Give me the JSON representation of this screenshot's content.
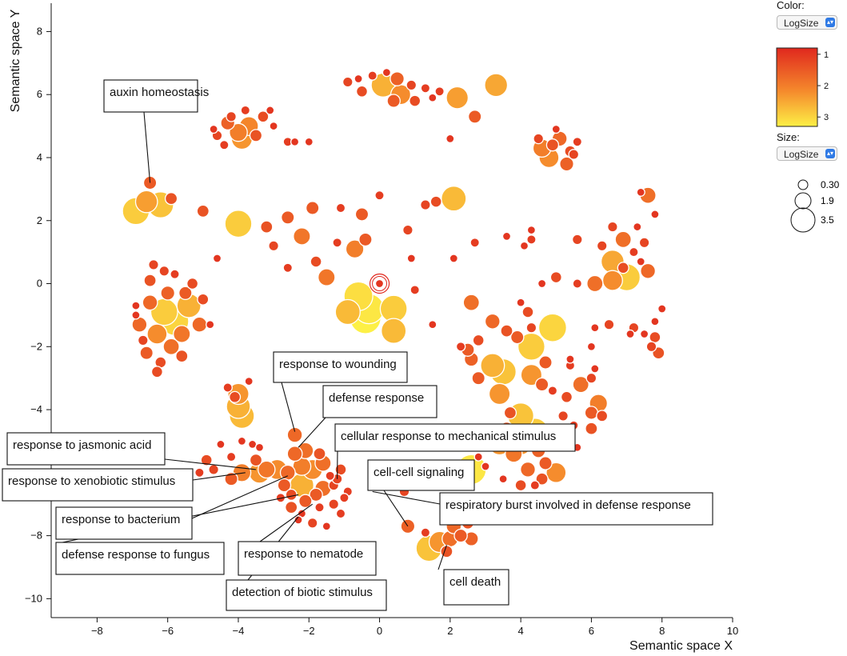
{
  "chart_data": {
    "type": "scatter",
    "xlabel": "Semantic space X",
    "ylabel": "Semantic space Y",
    "xlim": [
      -9.3,
      10
    ],
    "ylim": [
      -10.6,
      8.9
    ],
    "xticks": [
      -8,
      -6,
      -4,
      -2,
      0,
      2,
      4,
      6,
      8,
      10
    ],
    "yticks": [
      -10,
      -8,
      -6,
      -4,
      -2,
      0,
      2,
      4,
      6,
      8
    ],
    "color_scale": {
      "name": "LogSize",
      "ticks": [
        1,
        2,
        3
      ],
      "range": [
        0.8,
        3.3
      ],
      "low_color": "#e0281e",
      "high_color": "#fdf046"
    },
    "size_scale": {
      "name": "LogSize",
      "legend_values": [
        0.3,
        1.9,
        3.5
      ]
    },
    "points": [
      [
        -6.5,
        3.2,
        1.5
      ],
      [
        -6.9,
        2.3,
        2.9
      ],
      [
        -6.2,
        2.5,
        2.8
      ],
      [
        -6.6,
        2.6,
        2.4
      ],
      [
        -5.9,
        2.7,
        1.4
      ],
      [
        -4.0,
        4.8,
        2.0
      ],
      [
        -4.3,
        5.1,
        1.6
      ],
      [
        -3.7,
        5.0,
        2.1
      ],
      [
        -4.6,
        4.7,
        1.2
      ],
      [
        -3.3,
        5.3,
        1.3
      ],
      [
        -3.9,
        4.6,
        2.3
      ],
      [
        -4.4,
        4.4,
        1.1
      ],
      [
        -3.5,
        4.7,
        1.4
      ],
      [
        -4.2,
        5.3,
        1.2
      ],
      [
        -3.0,
        5.0,
        1.0
      ],
      [
        -2.6,
        4.5,
        1.1
      ],
      [
        -2.4,
        4.5,
        1.0
      ],
      [
        -3.1,
        5.5,
        1.0
      ],
      [
        -4.7,
        4.9,
        1.0
      ],
      [
        -3.8,
        5.5,
        1.1
      ],
      [
        -0.9,
        6.4,
        1.2
      ],
      [
        -0.5,
        6.1,
        1.3
      ],
      [
        0.1,
        6.3,
        2.6
      ],
      [
        0.5,
        6.5,
        1.6
      ],
      [
        0.9,
        6.3,
        1.2
      ],
      [
        0.4,
        5.8,
        1.5
      ],
      [
        -0.2,
        6.6,
        1.1
      ],
      [
        0.6,
        6.0,
        2.2
      ],
      [
        1.3,
        6.2,
        1.1
      ],
      [
        1.0,
        5.8,
        1.3
      ],
      [
        1.7,
        6.1,
        1.1
      ],
      [
        -0.6,
        6.5,
        1.0
      ],
      [
        0.2,
        6.7,
        1.0
      ],
      [
        1.5,
        5.9,
        1.0
      ],
      [
        2.2,
        5.9,
        2.4
      ],
      [
        3.3,
        6.3,
        2.5
      ],
      [
        2.7,
        5.3,
        1.5
      ],
      [
        2.0,
        4.6,
        1.0
      ],
      [
        -2.0,
        4.5,
        1.0
      ],
      [
        4.6,
        4.3,
        2.0
      ],
      [
        5.1,
        4.6,
        1.7
      ],
      [
        5.4,
        4.2,
        1.3
      ],
      [
        4.8,
        4.0,
        2.2
      ],
      [
        5.3,
        3.8,
        1.6
      ],
      [
        4.5,
        4.6,
        1.2
      ],
      [
        5.0,
        4.9,
        1.0
      ],
      [
        5.6,
        4.5,
        1.1
      ],
      [
        4.9,
        4.4,
        1.4
      ],
      [
        5.5,
        4.1,
        1.2
      ],
      [
        -5.0,
        2.3,
        1.4
      ],
      [
        -4.0,
        1.9,
        2.9
      ],
      [
        -3.2,
        1.8,
        1.4
      ],
      [
        -2.6,
        2.1,
        1.5
      ],
      [
        -1.9,
        2.4,
        1.5
      ],
      [
        -1.1,
        2.4,
        1.1
      ],
      [
        -0.5,
        2.2,
        1.5
      ],
      [
        0.0,
        2.8,
        1.1
      ],
      [
        1.3,
        2.5,
        1.2
      ],
      [
        1.6,
        2.6,
        1.3
      ],
      [
        2.1,
        2.7,
        2.7
      ],
      [
        -2.2,
        1.5,
        1.9
      ],
      [
        -3.0,
        1.2,
        1.2
      ],
      [
        -1.2,
        1.3,
        1.1
      ],
      [
        -0.7,
        1.1,
        2.0
      ],
      [
        -0.4,
        1.4,
        1.5
      ],
      [
        -1.8,
        0.7,
        1.3
      ],
      [
        -2.6,
        0.5,
        1.1
      ],
      [
        -1.5,
        0.2,
        1.9
      ],
      [
        -4.6,
        0.8,
        1.0
      ],
      [
        0.8,
        1.7,
        1.2
      ],
      [
        0.9,
        0.8,
        1.0
      ],
      [
        2.1,
        0.8,
        1.0
      ],
      [
        2.7,
        1.3,
        1.1
      ],
      [
        -6.5,
        -0.6,
        1.7
      ],
      [
        -6.1,
        -0.9,
        2.9
      ],
      [
        -5.8,
        -1.2,
        3.0
      ],
      [
        -5.4,
        -0.7,
        2.6
      ],
      [
        -6.8,
        -1.3,
        1.7
      ],
      [
        -6.3,
        -1.6,
        2.2
      ],
      [
        -5.9,
        -2.0,
        1.8
      ],
      [
        -6.6,
        -2.2,
        1.5
      ],
      [
        -5.6,
        -1.6,
        1.9
      ],
      [
        -6.0,
        -0.3,
        1.6
      ],
      [
        -5.0,
        -0.5,
        1.3
      ],
      [
        -5.3,
        0.0,
        1.3
      ],
      [
        -6.4,
        0.6,
        1.2
      ],
      [
        -6.9,
        -0.7,
        1.0
      ],
      [
        -6.2,
        -2.5,
        1.3
      ],
      [
        -6.5,
        0.1,
        1.4
      ],
      [
        -5.1,
        -1.3,
        1.7
      ],
      [
        -4.8,
        -1.3,
        1.0
      ],
      [
        -6.7,
        -1.8,
        1.2
      ],
      [
        -5.6,
        -2.3,
        1.4
      ],
      [
        -6.3,
        -2.8,
        1.3
      ],
      [
        -5.5,
        -0.3,
        1.5
      ],
      [
        -6.9,
        -1.0,
        1.0
      ],
      [
        -5.8,
        0.3,
        1.1
      ],
      [
        -6.1,
        0.4,
        1.2
      ],
      [
        0.0,
        0.0,
        1.0
      ],
      [
        -0.6,
        -0.4,
        3.1
      ],
      [
        -0.3,
        -0.8,
        3.2
      ],
      [
        -0.9,
        -0.9,
        2.7
      ],
      [
        -0.4,
        -1.1,
        3.3
      ],
      [
        0.4,
        -0.8,
        2.9
      ],
      [
        0.4,
        -1.5,
        2.7
      ],
      [
        1.0,
        -0.2,
        1.1
      ],
      [
        1.5,
        -1.3,
        1.0
      ],
      [
        2.6,
        -0.6,
        1.8
      ],
      [
        3.2,
        -1.2,
        1.7
      ],
      [
        3.6,
        -1.5,
        1.4
      ],
      [
        4.2,
        -0.9,
        1.3
      ],
      [
        4.3,
        -1.4,
        1.2
      ],
      [
        4.3,
        -2.0,
        2.9
      ],
      [
        3.9,
        -1.7,
        1.5
      ],
      [
        2.8,
        -1.8,
        1.3
      ],
      [
        2.5,
        -2.1,
        1.5
      ],
      [
        3.2,
        -2.6,
        2.6
      ],
      [
        2.6,
        -2.4,
        1.6
      ],
      [
        2.3,
        -2.0,
        1.1
      ],
      [
        2.8,
        -3.0,
        1.5
      ],
      [
        3.5,
        -2.8,
        2.8
      ],
      [
        4.3,
        -2.9,
        2.3
      ],
      [
        3.4,
        -3.5,
        2.3
      ],
      [
        4.7,
        -2.5,
        1.5
      ],
      [
        4.9,
        -1.4,
        3.0
      ],
      [
        4.6,
        -3.2,
        1.5
      ],
      [
        4.9,
        -3.4,
        1.1
      ],
      [
        5.4,
        -2.6,
        1.1
      ],
      [
        5.7,
        -3.2,
        1.8
      ],
      [
        6.0,
        -3.0,
        1.2
      ],
      [
        6.1,
        -2.7,
        1.0
      ],
      [
        5.3,
        -3.6,
        1.3
      ],
      [
        6.2,
        -3.8,
        2.0
      ],
      [
        6.0,
        -4.1,
        1.5
      ],
      [
        5.4,
        -2.4,
        1.0
      ],
      [
        6.1,
        -1.4,
        1.0
      ],
      [
        6.5,
        -1.3,
        1.2
      ],
      [
        6.0,
        -2.0,
        1.0
      ],
      [
        4.0,
        -0.6,
        1.0
      ],
      [
        4.6,
        0.0,
        1.0
      ],
      [
        5.0,
        0.2,
        1.3
      ],
      [
        5.6,
        0.0,
        1.1
      ],
      [
        6.1,
        0.0,
        1.8
      ],
      [
        6.6,
        0.1,
        2.2
      ],
      [
        6.9,
        0.5,
        1.3
      ],
      [
        7.0,
        0.2,
        2.9
      ],
      [
        7.5,
        1.3,
        1.2
      ],
      [
        7.2,
        1.0,
        1.1
      ],
      [
        7.4,
        0.7,
        1.0
      ],
      [
        7.6,
        0.4,
        1.7
      ],
      [
        6.6,
        0.7,
        2.5
      ],
      [
        6.3,
        1.2,
        1.2
      ],
      [
        6.6,
        1.8,
        1.2
      ],
      [
        6.9,
        1.4,
        1.8
      ],
      [
        7.3,
        1.8,
        1.0
      ],
      [
        7.6,
        2.8,
        1.8
      ],
      [
        7.4,
        2.9,
        1.0
      ],
      [
        7.8,
        2.2,
        1.0
      ],
      [
        7.5,
        -1.6,
        1.0
      ],
      [
        7.7,
        -2.0,
        1.2
      ],
      [
        7.8,
        -1.7,
        1.3
      ],
      [
        7.9,
        -2.2,
        1.4
      ],
      [
        7.2,
        -1.4,
        1.2
      ],
      [
        7.1,
        -1.6,
        1.0
      ],
      [
        7.8,
        -1.2,
        1.0
      ],
      [
        8.0,
        -0.8,
        1.0
      ],
      [
        4.3,
        1.4,
        1.1
      ],
      [
        4.3,
        1.7,
        1.0
      ],
      [
        4.1,
        1.2,
        1.0
      ],
      [
        3.6,
        1.5,
        1.0
      ],
      [
        5.6,
        1.4,
        1.2
      ],
      [
        4.0,
        -4.2,
        2.8
      ],
      [
        4.4,
        -4.7,
        2.9
      ],
      [
        4.0,
        -5.1,
        2.3
      ],
      [
        4.5,
        -5.3,
        1.6
      ],
      [
        4.2,
        -5.9,
        1.7
      ],
      [
        4.6,
        -6.2,
        1.4
      ],
      [
        4.0,
        -6.4,
        1.3
      ],
      [
        4.7,
        -5.7,
        1.5
      ],
      [
        5.0,
        -6.0,
        2.2
      ],
      [
        4.4,
        -6.4,
        1.1
      ],
      [
        3.6,
        -4.6,
        1.5
      ],
      [
        3.4,
        -5.1,
        2.3
      ],
      [
        3.8,
        -5.4,
        1.9
      ],
      [
        5.3,
        -4.9,
        1.2
      ],
      [
        5.6,
        -5.2,
        1.0
      ],
      [
        6.3,
        -4.2,
        1.3
      ],
      [
        6.0,
        -4.6,
        1.4
      ],
      [
        5.5,
        -4.5,
        1.1
      ],
      [
        5.2,
        -4.2,
        1.2
      ],
      [
        3.5,
        -6.2,
        1.0
      ],
      [
        3.7,
        -4.1,
        1.4
      ],
      [
        2.8,
        -5.5,
        1.0
      ],
      [
        3.0,
        -5.8,
        1.0
      ],
      [
        2.6,
        -5.9,
        3.2
      ],
      [
        2.5,
        -6.3,
        1.1
      ],
      [
        -4.3,
        -3.3,
        1.1
      ],
      [
        -4.1,
        -3.6,
        1.3
      ],
      [
        -4.0,
        -3.9,
        2.6
      ],
      [
        -4.0,
        -3.5,
        2.3
      ],
      [
        -3.9,
        -4.2,
        2.7
      ],
      [
        -3.7,
        -3.1,
        1.0
      ],
      [
        -3.6,
        -5.1,
        1.0
      ],
      [
        -3.9,
        -5.0,
        1.0
      ],
      [
        -3.4,
        -5.2,
        1.0
      ],
      [
        -4.2,
        -5.5,
        1.1
      ],
      [
        -3.5,
        -5.6,
        1.4
      ],
      [
        -3.4,
        -6.0,
        2.3
      ],
      [
        -3.9,
        -6.0,
        2.0
      ],
      [
        -3.2,
        -5.9,
        1.9
      ],
      [
        -2.9,
        -5.9,
        2.2
      ],
      [
        -2.6,
        -6.0,
        1.7
      ],
      [
        -2.2,
        -5.8,
        2.0
      ],
      [
        -1.9,
        -5.9,
        2.2
      ],
      [
        -1.6,
        -5.7,
        1.8
      ],
      [
        -2.4,
        -5.4,
        1.7
      ],
      [
        -2.1,
        -5.3,
        1.8
      ],
      [
        -1.7,
        -5.4,
        1.4
      ],
      [
        -2.4,
        -4.8,
        1.7
      ],
      [
        -2.2,
        -6.4,
        2.6
      ],
      [
        -1.6,
        -6.5,
        1.8
      ],
      [
        -1.3,
        -6.4,
        1.2
      ],
      [
        -1.8,
        -6.7,
        1.5
      ],
      [
        -2.1,
        -6.9,
        1.5
      ],
      [
        -2.5,
        -6.7,
        1.3
      ],
      [
        -2.7,
        -6.4,
        1.5
      ],
      [
        -1.4,
        -6.1,
        1.1
      ],
      [
        -1.1,
        -5.9,
        1.3
      ],
      [
        -1.2,
        -6.2,
        1.2
      ],
      [
        -0.9,
        -6.6,
        1.1
      ],
      [
        -1.3,
        -7.0,
        1.2
      ],
      [
        -1.7,
        -7.1,
        1.1
      ],
      [
        -2.2,
        -7.3,
        1.0
      ],
      [
        -1.1,
        -7.3,
        1.1
      ],
      [
        -4.7,
        -5.9,
        1.2
      ],
      [
        -4.5,
        -5.1,
        1.0
      ],
      [
        -4.9,
        -5.6,
        1.3
      ],
      [
        -4.2,
        -6.2,
        1.5
      ],
      [
        -5.1,
        -6.0,
        1.1
      ],
      [
        -2.8,
        -6.8,
        1.1
      ],
      [
        -2.5,
        -7.1,
        1.4
      ],
      [
        -1.5,
        -7.7,
        1.0
      ],
      [
        -1.9,
        -7.6,
        1.2
      ],
      [
        -2.3,
        -7.5,
        1.0
      ],
      [
        -1.0,
        -6.8,
        1.1
      ],
      [
        0.2,
        -6.4,
        1.0
      ],
      [
        -0.2,
        -6.0,
        1.0
      ],
      [
        0.7,
        -6.6,
        1.2
      ],
      [
        0.8,
        -7.7,
        1.6
      ],
      [
        1.4,
        -8.4,
        2.8
      ],
      [
        1.7,
        -8.2,
        2.3
      ],
      [
        2.0,
        -8.1,
        1.8
      ],
      [
        2.3,
        -8.0,
        1.5
      ],
      [
        2.6,
        -8.1,
        1.6
      ],
      [
        2.5,
        -7.6,
        1.4
      ],
      [
        2.1,
        -7.7,
        1.7
      ],
      [
        1.9,
        -8.5,
        1.4
      ],
      [
        1.3,
        -7.9,
        1.1
      ]
    ],
    "annotations": [
      {
        "text": "auxin homeostasis",
        "target": [
          -6.5,
          3.2
        ]
      },
      {
        "text": "response to wounding",
        "target": [
          -2.4,
          -4.7
        ]
      },
      {
        "text": "defense response",
        "target": [
          -2.3,
          -5.2
        ]
      },
      {
        "text": "cellular response to mechanical stimulus",
        "target": [
          -1.2,
          -6.2
        ]
      },
      {
        "text": "response to jasmonic acid",
        "target": [
          -3.5,
          -5.9
        ]
      },
      {
        "text": "response to xenobiotic stimulus",
        "target": [
          -3.8,
          -6.0
        ]
      },
      {
        "text": "cell-cell signaling",
        "target": [
          0.8,
          -7.7
        ]
      },
      {
        "text": "respiratory burst involved in defense response",
        "target": [
          -0.2,
          -6.6
        ]
      },
      {
        "text": "response to bacterium",
        "target": [
          -2.6,
          -6.1
        ]
      },
      {
        "text": "defense response to fungus",
        "target": [
          -2.3,
          -6.7
        ]
      },
      {
        "text": "response to nematode",
        "target": [
          -1.9,
          -7.0
        ]
      },
      {
        "text": "detection of biotic stimulus",
        "target": [
          -2.3,
          -7.4
        ]
      },
      {
        "text": "cell death",
        "target": [
          1.9,
          -8.3
        ]
      }
    ]
  },
  "controls": {
    "color_label": "Color:",
    "color_select": "LogSize",
    "size_label": "Size:",
    "size_select": "LogSize",
    "colorbar_ticks": [
      "1",
      "2",
      "3"
    ],
    "size_legend": [
      "0.30",
      "1.9",
      "3.5"
    ]
  }
}
